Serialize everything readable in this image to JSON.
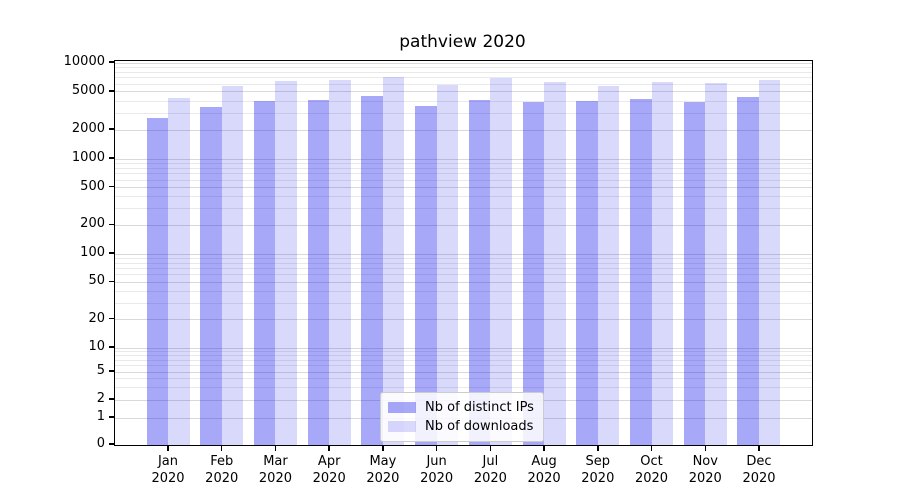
{
  "chart_data": {
    "type": "bar",
    "title": "pathview 2020",
    "categories": [
      "Jan 2020",
      "Feb 2020",
      "Mar 2020",
      "Apr 2020",
      "May 2020",
      "Jun 2020",
      "Jul 2020",
      "Aug 2020",
      "Sep 2020",
      "Oct 2020",
      "Nov 2020",
      "Dec 2020"
    ],
    "series": [
      {
        "name": "Nb of distinct IPs",
        "color": "rgba(20,20,235,0.37)",
        "values": [
          2700,
          3450,
          4000,
          4100,
          4500,
          3600,
          4100,
          3900,
          4000,
          4250,
          3950,
          4400
        ]
      },
      {
        "name": "Nb of downloads",
        "color": "rgba(20,20,235,0.16)",
        "values": [
          4300,
          5800,
          6500,
          6700,
          7150,
          5900,
          6950,
          6300,
          5800,
          6400,
          6150,
          6700
        ]
      }
    ],
    "xlabel": "",
    "ylabel": "",
    "yscale": "symlog",
    "ylim": [
      0,
      10500
    ],
    "y_ticks": [
      10000,
      5000,
      2000,
      1000,
      500,
      200,
      100,
      50,
      20,
      10,
      5,
      2,
      1,
      0
    ],
    "grid": true,
    "legend_position": "lower center",
    "colors": {
      "grid_major": "#d9d9d9",
      "grid_minor": "#e9e9e9",
      "spine": "#000000",
      "background": "#ffffff"
    }
  }
}
